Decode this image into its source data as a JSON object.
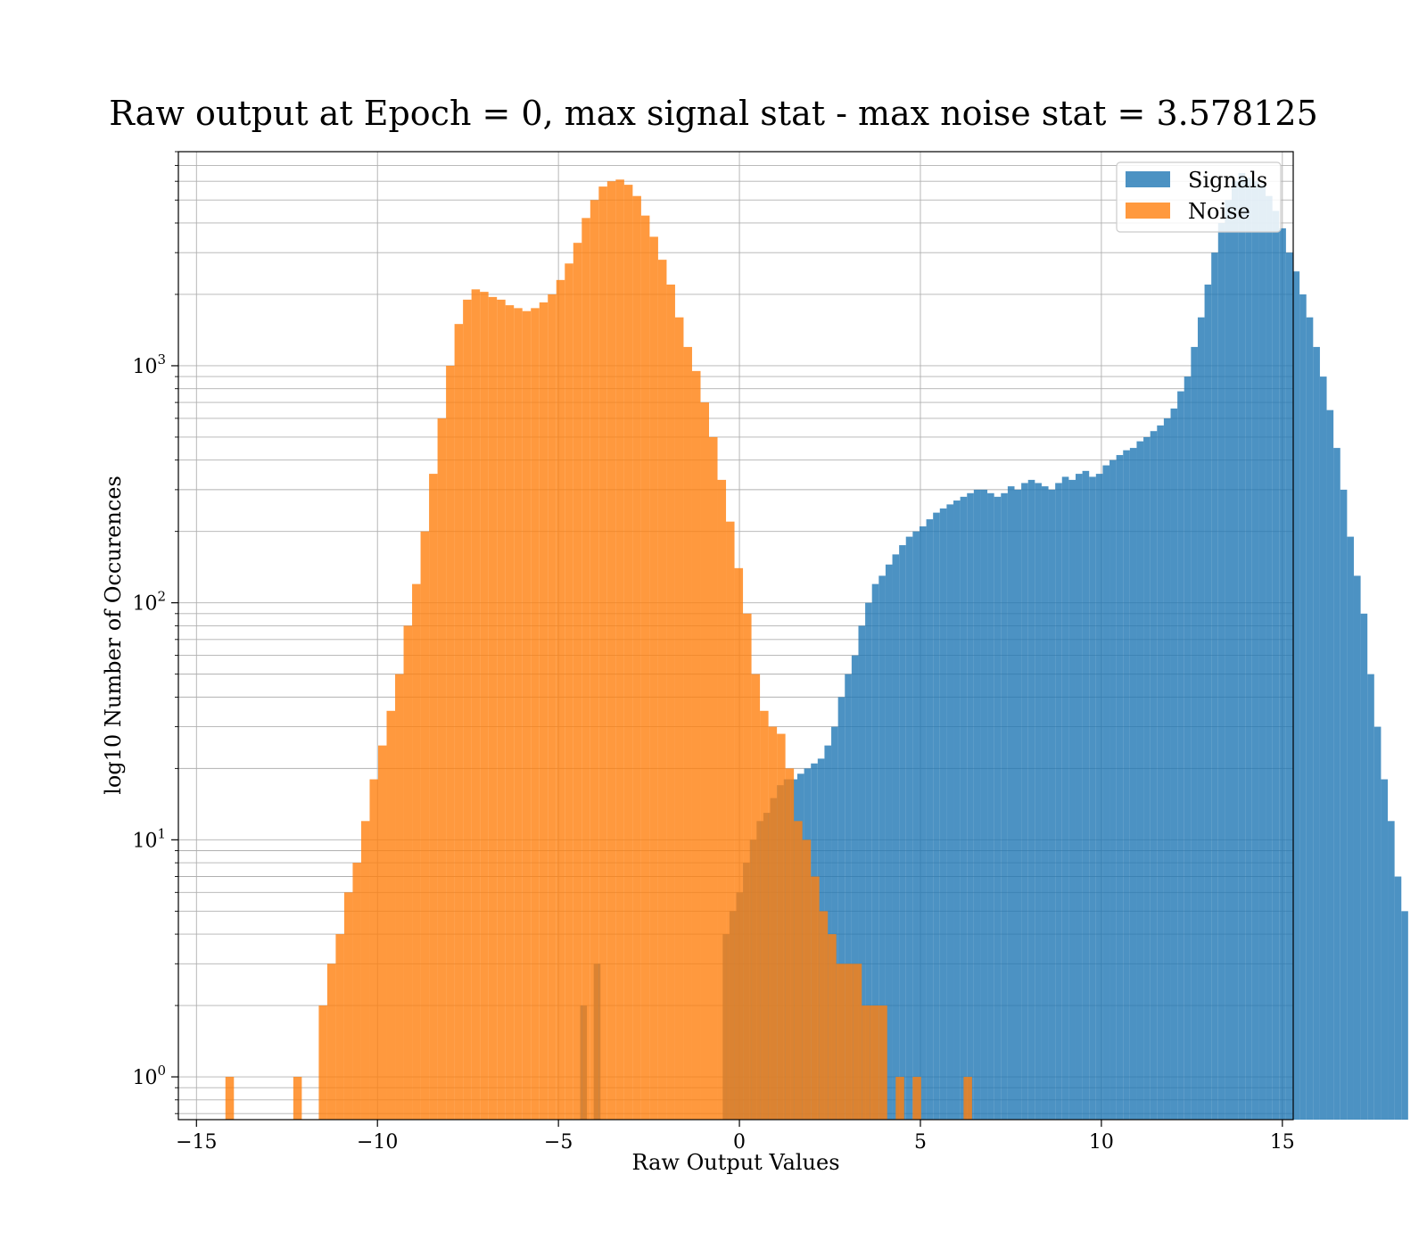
{
  "chart_data": {
    "type": "bar",
    "subtype": "overlaid-histogram",
    "title": "Raw output at Epoch = 0, max signal stat - max noise stat = 3.578125",
    "xlabel": "Raw Output Values",
    "ylabel": "log10 Number of Occurences",
    "xlim": [
      -15.5,
      15.3
    ],
    "ylim": [
      0.66,
      8000
    ],
    "yscale": "log",
    "grid": true,
    "legend_position": "top-right",
    "x_ticks": [
      -15,
      -10,
      -5,
      0,
      5,
      10,
      15
    ],
    "x_tick_labels": [
      "−15",
      "−10",
      "−5",
      "0",
      "5",
      "10",
      "15"
    ],
    "y_ticks": [
      1,
      10,
      100,
      1000
    ],
    "y_tick_labels": [
      {
        "base": "10",
        "exp": "0"
      },
      {
        "base": "10",
        "exp": "1"
      },
      {
        "base": "10",
        "exp": "2"
      },
      {
        "base": "10",
        "exp": "3"
      }
    ],
    "series": [
      {
        "name": "Signals",
        "color": "#1f77b4",
        "opacity": 0.8,
        "bin_start": -4.4,
        "bin_width": 0.1875,
        "values": [
          2,
          0,
          3,
          0,
          0,
          0,
          0,
          0,
          0,
          0,
          0,
          0,
          0,
          0,
          0,
          0,
          0,
          0,
          0,
          0,
          0,
          4,
          5,
          6,
          8,
          10,
          12,
          13,
          15,
          17,
          18,
          18,
          19,
          20,
          21,
          22,
          25,
          30,
          40,
          50,
          60,
          80,
          100,
          120,
          130,
          145,
          160,
          175,
          190,
          200,
          210,
          225,
          240,
          250,
          260,
          270,
          280,
          290,
          300,
          300,
          290,
          280,
          290,
          310,
          300,
          320,
          330,
          320,
          310,
          300,
          320,
          340,
          330,
          350,
          360,
          340,
          350,
          380,
          400,
          420,
          440,
          450,
          480,
          500,
          530,
          560,
          600,
          660,
          780,
          900,
          1200,
          1600,
          2200,
          3000,
          4000,
          5000,
          6000,
          6500,
          6200,
          6000,
          5800,
          5200,
          4500,
          3800,
          3000,
          2500,
          2000,
          1600,
          1200,
          900,
          650,
          450,
          300,
          190,
          130,
          90,
          50,
          30,
          18,
          12,
          7,
          5
        ]
      },
      {
        "name": "Noise",
        "color": "#ff7f0e",
        "opacity": 0.8,
        "bin_start": -14.2,
        "bin_width": 0.2344,
        "values": [
          1,
          0,
          0,
          0,
          0,
          0,
          0,
          0,
          1,
          0,
          0,
          2,
          3,
          4,
          6,
          8,
          12,
          18,
          25,
          35,
          50,
          80,
          120,
          200,
          350,
          600,
          1000,
          1500,
          1900,
          2100,
          2050,
          1950,
          1900,
          1800,
          1750,
          1700,
          1750,
          1850,
          2000,
          2300,
          2700,
          3300,
          4200,
          5000,
          5700,
          6000,
          6100,
          5800,
          5200,
          4300,
          3500,
          2800,
          2200,
          1600,
          1200,
          950,
          700,
          500,
          330,
          220,
          140,
          90,
          50,
          35,
          30,
          28,
          20,
          12,
          10,
          7,
          5,
          4,
          3,
          3,
          3,
          2,
          2,
          2,
          0,
          1,
          0,
          1,
          0,
          0,
          0,
          0,
          0,
          1
        ]
      }
    ]
  }
}
